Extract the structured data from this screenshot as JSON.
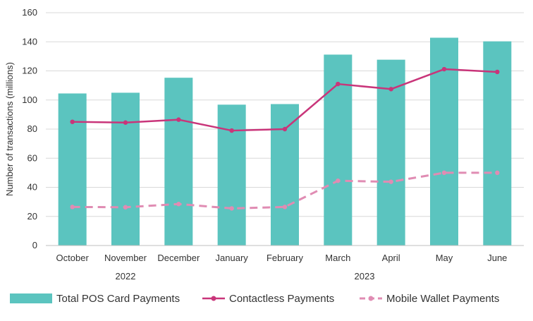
{
  "chart_data": {
    "type": "bar",
    "title": "",
    "xlabel": "",
    "ylabel": "Number of transactions (millions)",
    "ylim": [
      0,
      160
    ],
    "yticks": [
      0,
      20,
      40,
      60,
      80,
      100,
      120,
      140,
      160
    ],
    "grid": true,
    "legend_position": "bottom",
    "categories": [
      "October",
      "November",
      "December",
      "January",
      "February",
      "March",
      "April",
      "May",
      "June"
    ],
    "year_groups": [
      {
        "label": "2022",
        "categories": [
          "October",
          "November",
          "December"
        ]
      },
      {
        "label": "2023",
        "categories": [
          "January",
          "February",
          "March",
          "April",
          "May",
          "June"
        ]
      }
    ],
    "series": [
      {
        "name": "Total POS Card Payments",
        "kind": "bar",
        "color": "#5bc4bf",
        "values": [
          104.5,
          105,
          115.3,
          96.8,
          97.2,
          131.2,
          127.7,
          142.8,
          140.3
        ]
      },
      {
        "name": "Contactless Payments",
        "kind": "line",
        "style": "solid",
        "color": "#c9357a",
        "values": [
          85,
          84.5,
          86.5,
          79,
          80,
          111,
          107.5,
          121.2,
          119.3
        ]
      },
      {
        "name": "Mobile Wallet Payments",
        "kind": "line",
        "style": "dashed",
        "color": "#e08cb3",
        "values": [
          26.5,
          26.3,
          28.5,
          25.5,
          26.5,
          44.5,
          43.8,
          50,
          50
        ]
      }
    ]
  }
}
